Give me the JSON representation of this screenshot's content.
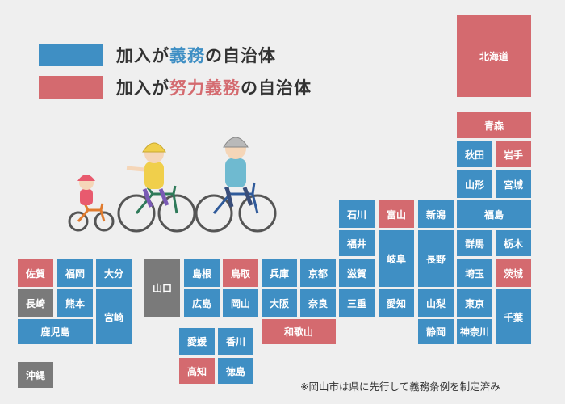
{
  "legend": {
    "mandatory": {
      "prefix": "加入が",
      "highlight": "義務",
      "suffix": "の自治体",
      "color": "#3f8fc4"
    },
    "effort": {
      "prefix": "加入が",
      "highlight": "努力義務",
      "suffix": "の自治体",
      "color": "#d46a6f"
    }
  },
  "colors": {
    "mandatory": "#3f8fc4",
    "effort": "#d46a6f",
    "other": "#7a7a7a",
    "background": "#efefef"
  },
  "prefectures": {
    "hokkaido": "北海道",
    "aomori": "青森",
    "akita": "秋田",
    "iwate": "岩手",
    "yamagata": "山形",
    "miyagi": "宮城",
    "fukushima": "福島",
    "niigata": "新潟",
    "toyama": "富山",
    "ishikawa": "石川",
    "fukui": "福井",
    "gifu": "岐阜",
    "nagano": "長野",
    "gunma": "群馬",
    "tochigi": "栃木",
    "saitama": "埼玉",
    "ibaraki": "茨城",
    "shiga": "滋賀",
    "kyoto": "京都",
    "hyogo": "兵庫",
    "osaka": "大阪",
    "nara": "奈良",
    "wakayama": "和歌山",
    "mie": "三重",
    "aichi": "愛知",
    "yamanashi": "山梨",
    "tokyo": "東京",
    "chiba": "千葉",
    "shizuoka": "静岡",
    "kanagawa": "神奈川",
    "tottori": "鳥取",
    "shimane": "島根",
    "okayama": "岡山",
    "hiroshima": "広島",
    "yamaguchi": "山口",
    "ehime": "愛媛",
    "kagawa": "香川",
    "kochi": "高知",
    "tokushima": "徳島",
    "saga": "佐賀",
    "fukuoka": "福岡",
    "oita": "大分",
    "nagasaki": "長崎",
    "kumamoto": "熊本",
    "miyazaki": "宮崎",
    "kagoshima": "鹿児島",
    "okinawa": "沖縄"
  },
  "note": "※岡山市は県に先行して義務条例を制定済み",
  "illustration": "cyclists-with-helmets"
}
